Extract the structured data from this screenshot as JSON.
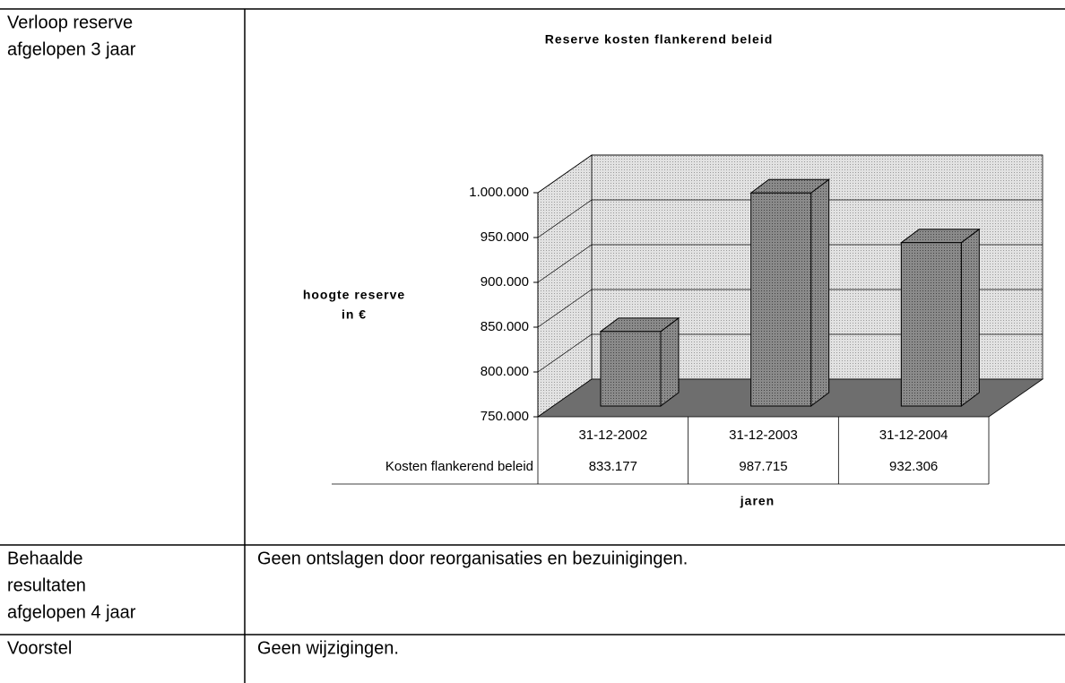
{
  "table": {
    "rows": [
      {
        "label": [
          "Verloop reserve",
          "afgelopen 3 jaar"
        ]
      },
      {
        "label": [
          "Behaalde",
          "resultaten",
          "afgelopen 4 jaar"
        ],
        "text": "Geen ontslagen door reorganisaties en bezuinigingen."
      },
      {
        "label": [
          "Voorstel"
        ],
        "text": "Geen wijzigingen."
      }
    ]
  },
  "chart_data": {
    "type": "bar3d",
    "title": "Reserve kosten flankerend beleid",
    "ylabel": [
      "hoogte reserve",
      "in €"
    ],
    "xlabel": "jaren",
    "categories": [
      "31-12-2002",
      "31-12-2003",
      "31-12-2004"
    ],
    "series": [
      {
        "name": "Kosten flankerend beleid",
        "color": "#8a8a8a",
        "values": [
          833177,
          987715,
          932306
        ],
        "value_labels": [
          "833.177",
          "987.715",
          "932.306"
        ]
      }
    ],
    "ylim": [
      750000,
      1000000
    ],
    "yticks": [
      {
        "value": 750000,
        "label": "750.000"
      },
      {
        "value": 800000,
        "label": "800.000"
      },
      {
        "value": 850000,
        "label": "850.000"
      },
      {
        "value": 900000,
        "label": "900.000"
      },
      {
        "value": 950000,
        "label": "950.000"
      },
      {
        "value": 1000000,
        "label": "1.000.000"
      }
    ],
    "grid": true
  }
}
